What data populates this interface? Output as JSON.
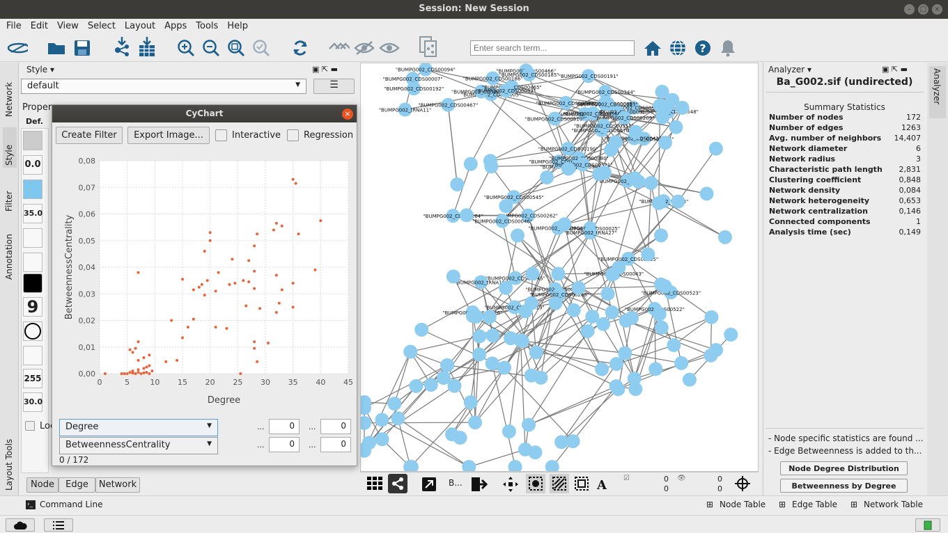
{
  "window": {
    "title": "Session: New Session"
  },
  "menu": [
    "File",
    "Edit",
    "View",
    "Select",
    "Layout",
    "Apps",
    "Tools",
    "Help"
  ],
  "search": {
    "placeholder": "Enter search term..."
  },
  "left_tabs": [
    "Network",
    "Style",
    "Filter",
    "Annotation",
    "Layout Tools"
  ],
  "style_panel": {
    "header": "Style",
    "style_name": "default",
    "properties_label": "Proper",
    "def_label": "Def.",
    "rows": [
      "0.0",
      "35.0",
      "9",
      "255",
      "30.0"
    ],
    "lock_label": "Loc",
    "tabs": [
      "Node",
      "Edge",
      "Network"
    ]
  },
  "cychart": {
    "title": "CyChart",
    "create_filter": "Create Filter",
    "export_image": "Export Image...",
    "interactive": "Interactive",
    "regression": "Regression",
    "x_select": "Degree",
    "y_select": "BetweennessCentrality",
    "x_min": "0",
    "x_max": "0",
    "y_min": "0",
    "y_max": "0",
    "dots": "...",
    "count": "0 / 172"
  },
  "chart_data": {
    "type": "scatter",
    "xlabel": "Degree",
    "ylabel": "BetweennessCentrality",
    "xlim": [
      0,
      45
    ],
    "ylim": [
      0,
      0.08
    ],
    "x_ticks": [
      "0",
      "5",
      "10",
      "15",
      "20",
      "25",
      "30",
      "35",
      "40",
      "45"
    ],
    "y_ticks": [
      "0,00",
      "0,01",
      "0,02",
      "0,03",
      "0,04",
      "0,05",
      "0,06",
      "0,07",
      "0,08"
    ],
    "grid": true,
    "color": "#e8643a",
    "points": [
      [
        1,
        0
      ],
      [
        4,
        0
      ],
      [
        4.5,
        0
      ],
      [
        5,
        0
      ],
      [
        5.5,
        0.0005
      ],
      [
        6,
        0.001
      ],
      [
        6,
        0.0002
      ],
      [
        6.5,
        0
      ],
      [
        7,
        0.0005
      ],
      [
        7.5,
        0
      ],
      [
        8,
        0.0003
      ],
      [
        8.5,
        0.0005
      ],
      [
        9,
        0
      ],
      [
        5.5,
        0.009
      ],
      [
        6,
        0.008
      ],
      [
        6.5,
        0.0095
      ],
      [
        7,
        0.012
      ],
      [
        7,
        0.005
      ],
      [
        7,
        0.0015
      ],
      [
        8,
        0.006
      ],
      [
        8,
        0.002
      ],
      [
        8.5,
        0.0025
      ],
      [
        9,
        0.007
      ],
      [
        9,
        0.003
      ],
      [
        9.5,
        0.001
      ],
      [
        7,
        0.038
      ],
      [
        12,
        0.0045
      ],
      [
        13,
        0.02
      ],
      [
        14,
        0.005
      ],
      [
        15,
        0.0135
      ],
      [
        15,
        0.0355
      ],
      [
        16,
        0.0175
      ],
      [
        17,
        0.0205
      ],
      [
        17,
        0.0315
      ],
      [
        18,
        0.0325
      ],
      [
        18.5,
        0.0335
      ],
      [
        19,
        0.0295
      ],
      [
        19,
        0.046
      ],
      [
        19.5,
        0.035
      ],
      [
        20,
        0.05
      ],
      [
        20,
        0.053
      ],
      [
        21,
        0.0175
      ],
      [
        21,
        0.031
      ],
      [
        21.5,
        0.038
      ],
      [
        23,
        0.017
      ],
      [
        23.5,
        0.0335
      ],
      [
        24,
        0.043
      ],
      [
        24.5,
        0.034
      ],
      [
        25.5,
        0
      ],
      [
        26,
        0.035
      ],
      [
        26.5,
        0.0255
      ],
      [
        27,
        0.0425
      ],
      [
        27,
        0.0345
      ],
      [
        28,
        0.048
      ],
      [
        28,
        0.032
      ],
      [
        28,
        0.0385
      ],
      [
        28,
        0.012
      ],
      [
        28,
        0.0095
      ],
      [
        28.5,
        0.0525
      ],
      [
        28.5,
        0.0045
      ],
      [
        29,
        0.0245
      ],
      [
        30.5,
        0.0115
      ],
      [
        31.5,
        0.054
      ],
      [
        32,
        0.0565
      ],
      [
        32,
        0.023
      ],
      [
        32,
        0.037
      ],
      [
        32.5,
        0.0265
      ],
      [
        33,
        0.0315
      ],
      [
        33,
        0.0555
      ],
      [
        35,
        0.073
      ],
      [
        35,
        0.025
      ],
      [
        35,
        0.034
      ],
      [
        35.5,
        0.0715
      ],
      [
        36,
        0.0525
      ],
      [
        39,
        0.039
      ],
      [
        40,
        0.0575
      ]
    ]
  },
  "analyzer": {
    "header": "Analyzer",
    "file_title": "Ba_G002.sif (undirected)",
    "summary_title": "Summary Statistics",
    "stats": [
      {
        "label": "Number of nodes",
        "value": "172"
      },
      {
        "label": "Number of edges",
        "value": "1263"
      },
      {
        "label": "Avg. number of neighbors",
        "value": "14,407"
      },
      {
        "label": "Network diameter",
        "value": "6"
      },
      {
        "label": "Network radius",
        "value": "3"
      },
      {
        "label": "Characteristic path length",
        "value": "2,831"
      },
      {
        "label": "Clustering coefficient",
        "value": "0,848"
      },
      {
        "label": "Network density",
        "value": "0,084"
      },
      {
        "label": "Network heterogeneity",
        "value": "0,653"
      },
      {
        "label": "Network centralization",
        "value": "0,146"
      },
      {
        "label": "Connected components",
        "value": "1"
      },
      {
        "label": "Analysis time (sec)",
        "value": "0,149"
      }
    ],
    "notes": [
      "- Node specific statistics are found ...",
      "- Edge Betweenness is added to th..."
    ],
    "btn_degree": "Node Degree Distribution",
    "btn_betweenness": "Betweenness by Degree"
  },
  "right_tab": "Analyzer",
  "netbar": {
    "b_label": "B...",
    "sel1": "0",
    "sel2": "0",
    "hid1": "0",
    "hid2": "0"
  },
  "network_labels": [
    "\"BUMPG002_CDS00005\"",
    "\"BUMPG002_CDS00007\"",
    "\"BUMPG002_CDS00003\"",
    "\"BUMPG002_tRNA11\"",
    "\"BUMPG002_CDS00465\"",
    "\"BUMPG002_CDS00467\"",
    "\"BUMPG002_CDS00466\"",
    "\"BUMPG002_CDS00186\"",
    "\"BUMPG002_CDS00185\"",
    "\"BUMPG002_CDS00093\"",
    "\"BUMPG002_CDS00094\"",
    "\"BUMPG002_CDS00096\"",
    "\"BUMPG002_CDS00192\"",
    "\"BUMPG002_CDS00191\"",
    "\"BUMPG002_CDS00470\"",
    "\"BUMPG002_CDS00597\"",
    "\"BUMPG002_CDS00099\"",
    "\"BUMPG002_CDS00085\"",
    "\"BUMPG002_CDS00081\"",
    "\"BUMPG002_CDS00190\"",
    "\"BUMPG002_CDS00566\"",
    "\"BUMPG002_CDS00091\"",
    "\"BUMPG002_CDS00080\"",
    "\"BUMPG002_CDS00083\"",
    "\"BUMPG002_CDS00209\"",
    "\"BUMPG002_CDS00346\"",
    "\"BUMPG002_CDS00349\"",
    "\"BUMPG002_CDS00344\"",
    "\"BUMPG002_CDS00510\"",
    "\"BUMPG002_CDS00435\"",
    "\"BUMPG002_CDS00548\"",
    "\"BUMPG002_CDS00351\"",
    "\"BUMPG002_CDS00347\"",
    "\"BUMPG002_CDS00047\"",
    "\"BUMPG002_CDS00545\"",
    "\"BUMPG002_CDS00044\"",
    "\"BUMPG002_CDS00045\"",
    "\"BUMPG002_CDS00522\"",
    "\"BUMPG002_CDS00523\"",
    "\"BUMPG002_CDS00265\"",
    "\"BUMPG002_CDS00521\"",
    "\"BUMPG002_CDS00262\"",
    "\"BUMPG002_CDS00046\"",
    "\"BUMPG002_CDS00043\"",
    "\"BUMPG002_CDS00519\"",
    "\"BUMPG002_CDS00264\"",
    "\"BUMPG002_CDS00025\"",
    "\"BUMPG002_CDS00026\"",
    "\"BUMPG002_CDS00268\"",
    "\"BUMPG002_tRNA27\"",
    "\"BUMPG002_tRNA19\"",
    "\"BUMPG002_tRNA3\""
  ],
  "bottom": {
    "command_line": "Command Line",
    "node_table": "Node Table",
    "edge_table": "Edge Table",
    "network_table": "Network Table"
  }
}
